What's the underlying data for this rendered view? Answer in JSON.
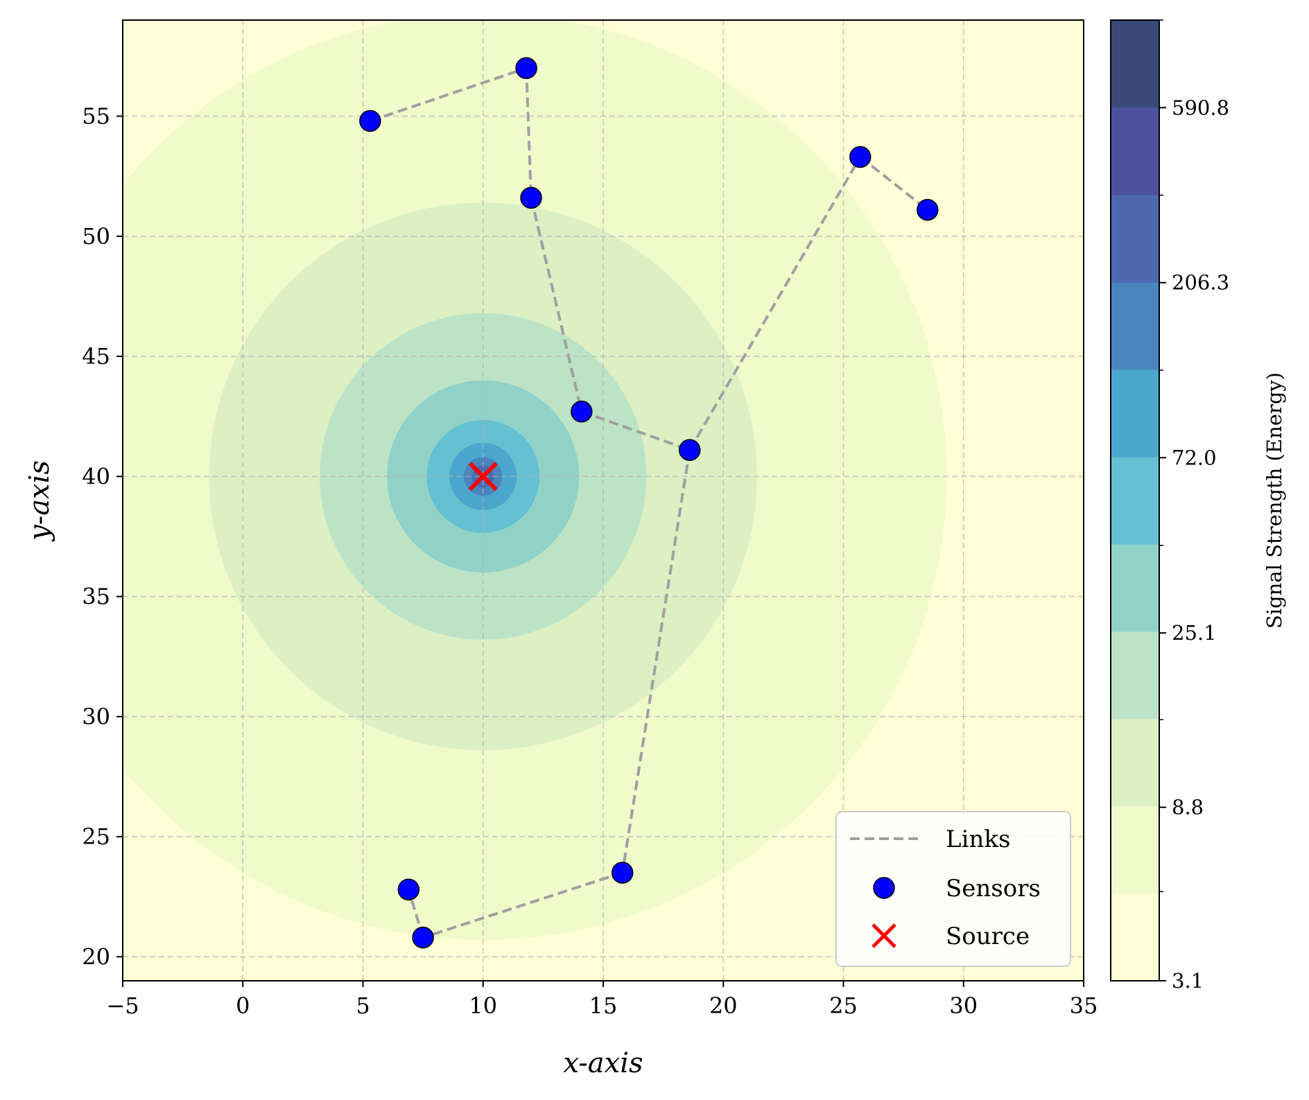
{
  "chart_data": {
    "type": "contour_scatter",
    "xlabel": "x-axis",
    "ylabel": "y-axis",
    "xlim": [
      -5,
      35
    ],
    "ylim": [
      19,
      59
    ],
    "xticks": [
      -5,
      0,
      5,
      10,
      15,
      20,
      25,
      30,
      35
    ],
    "xtick_labels": [
      "−5",
      "0",
      "5",
      "10",
      "15",
      "20",
      "25",
      "30",
      "35"
    ],
    "yticks": [
      20,
      25,
      30,
      35,
      40,
      45,
      50,
      55
    ],
    "ytick_labels": [
      "20",
      "25",
      "30",
      "35",
      "40",
      "45",
      "50",
      "55"
    ],
    "grid": true,
    "source": {
      "name": "Source",
      "x": 10,
      "y": 40,
      "color": "#ff0000",
      "marker": "x"
    },
    "sensors": {
      "name": "Sensors",
      "color": "#0000ff",
      "points": [
        {
          "x": 5.3,
          "y": 54.8
        },
        {
          "x": 11.8,
          "y": 57.0
        },
        {
          "x": 12.0,
          "y": 51.6
        },
        {
          "x": 14.1,
          "y": 42.7
        },
        {
          "x": 18.6,
          "y": 41.1
        },
        {
          "x": 25.7,
          "y": 53.3
        },
        {
          "x": 28.5,
          "y": 51.1
        },
        {
          "x": 15.8,
          "y": 23.5
        },
        {
          "x": 7.5,
          "y": 20.8
        },
        {
          "x": 6.9,
          "y": 22.8
        }
      ]
    },
    "links": {
      "name": "Links",
      "color": "#a0a0a0",
      "style": "dashed",
      "segments": [
        [
          0,
          1
        ],
        [
          1,
          2
        ],
        [
          2,
          3
        ],
        [
          3,
          4
        ],
        [
          4,
          5
        ],
        [
          5,
          6
        ],
        [
          4,
          7
        ],
        [
          7,
          8
        ],
        [
          8,
          9
        ]
      ]
    },
    "contour_levels": [
      3.1,
      5.3,
      8.8,
      14.9,
      25.1,
      42.5,
      72.0,
      121.9,
      206.3,
      349.1,
      590.8,
      1000.0
    ],
    "contour_radii": [
      null,
      19.3,
      11.4,
      6.8,
      4.0,
      2.35,
      1.4,
      0.8,
      0.45
    ],
    "contour_colors": [
      "#fefed7",
      "#f1facb",
      "#dcf0c4",
      "#bde3c6",
      "#91d2c8",
      "#65c0d1",
      "#4aa6cd",
      "#4a85bd",
      "#4b68b0",
      "#4d52a0",
      "#3a4977"
    ],
    "colorbar": {
      "label": "Signal Strength (Energy)",
      "tick_values": [
        3.1,
        8.8,
        25.1,
        72.0,
        206.3,
        590.8
      ],
      "tick_labels": [
        "3.1",
        "8.8",
        "25.1",
        "72.0",
        "206.3",
        "590.8"
      ]
    },
    "legend": {
      "position": "lower right",
      "entries": [
        "Links",
        "Sensors",
        "Source"
      ]
    }
  }
}
